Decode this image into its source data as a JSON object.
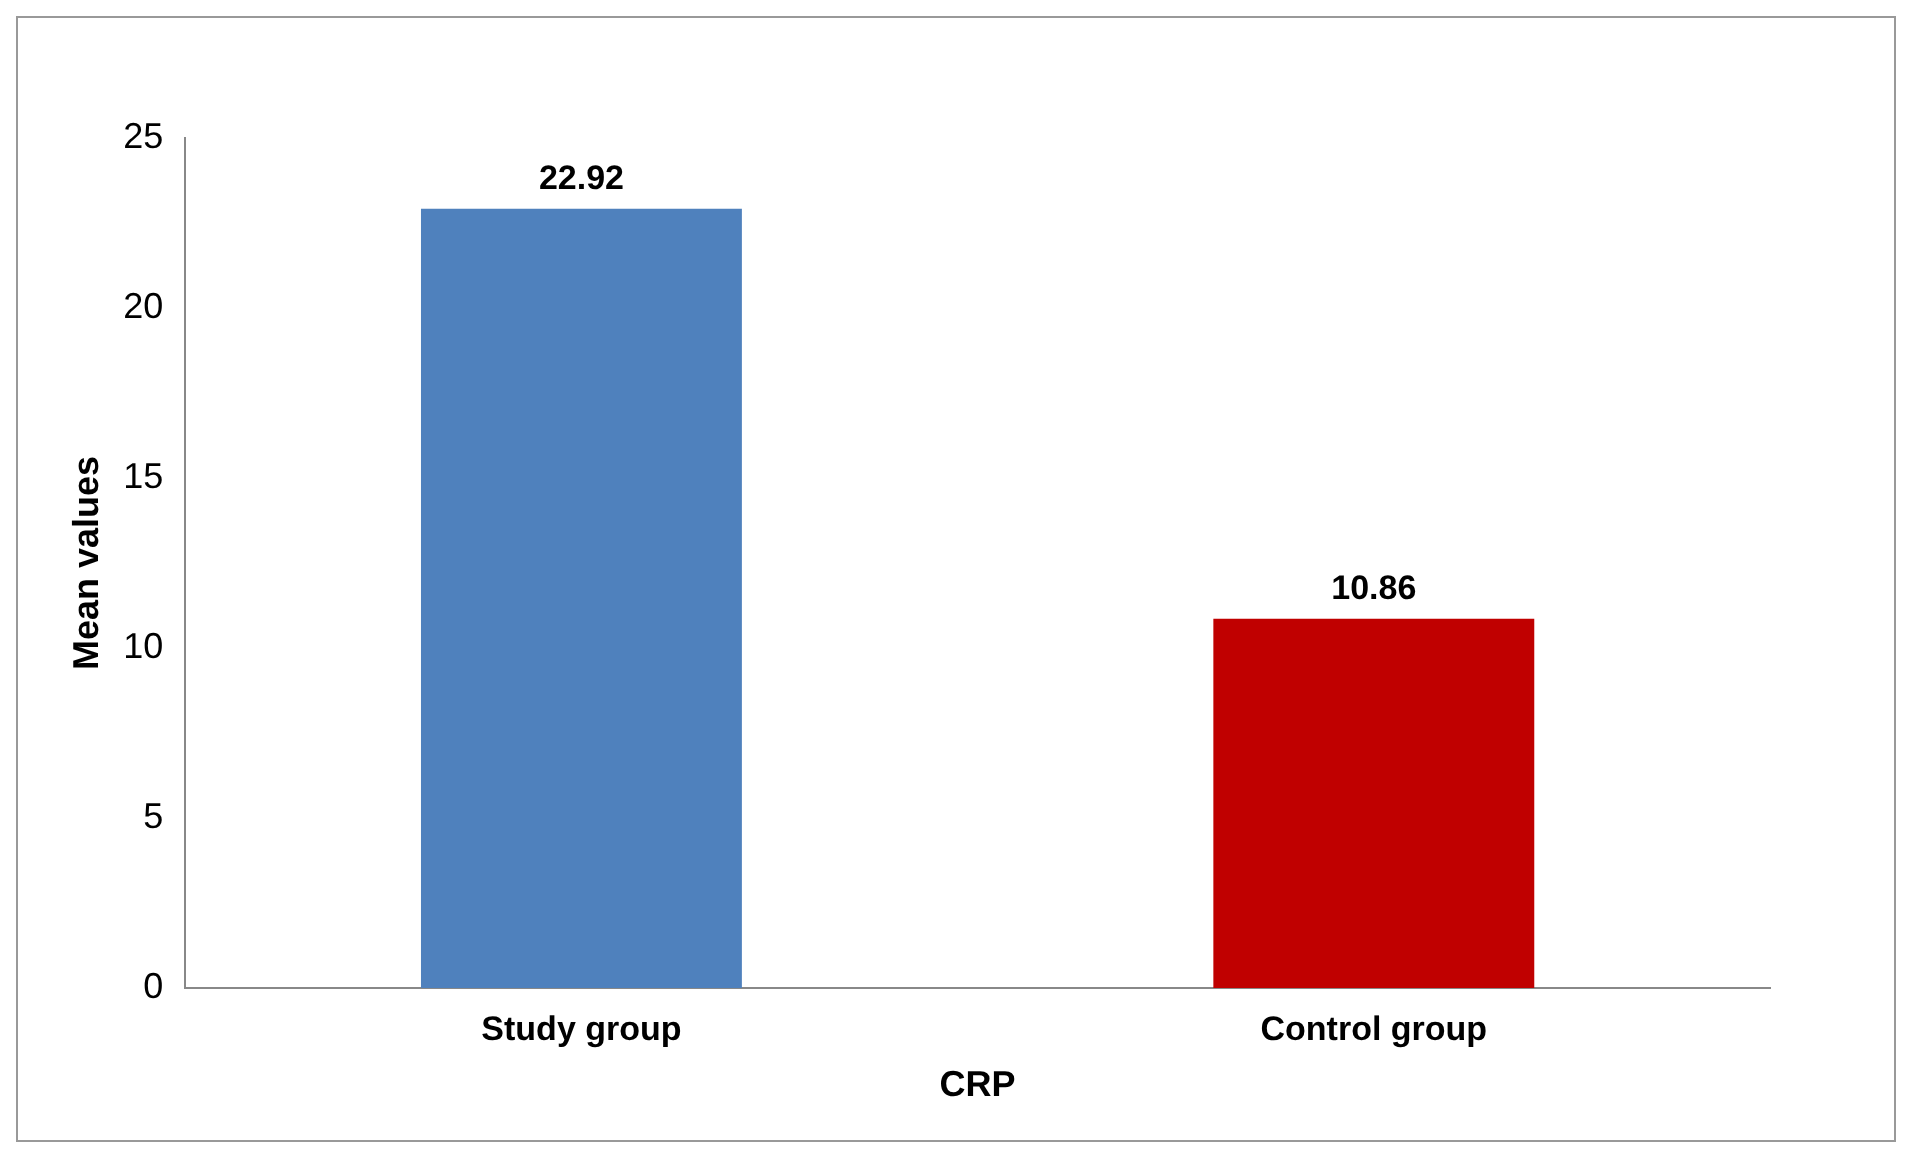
{
  "chart_data": {
    "type": "bar",
    "categories": [
      "Study group",
      "Control group"
    ],
    "values": [
      22.92,
      10.86
    ],
    "colors": [
      "#4f81bd",
      "#c00000"
    ],
    "ylim": [
      0,
      25
    ],
    "yticks": [
      0,
      5,
      10,
      15,
      20,
      25
    ],
    "xlabel": "CRP",
    "ylabel": "Mean values",
    "data_labels": true
  }
}
